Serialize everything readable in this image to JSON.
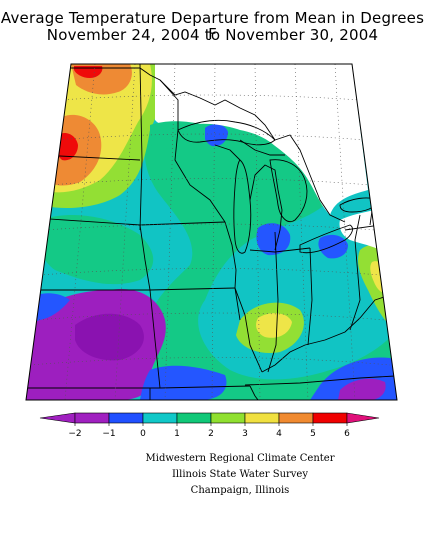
{
  "title": {
    "line1": "Average Temperature Departure from Mean in Degrees F",
    "line2": "November 24, 2004 to November 30, 2004"
  },
  "legend": {
    "ticks": [
      "−2",
      "−1",
      "0",
      "1",
      "2",
      "3",
      "4",
      "5",
      "6"
    ],
    "colors": [
      "#a020c0",
      "#2050ff",
      "#10c8c8",
      "#10c878",
      "#90e030",
      "#f0e040",
      "#f08a30",
      "#f00000",
      "#e0107a"
    ]
  },
  "credits": {
    "line1": "Midwestern Regional Climate Center",
    "line2": "Illinois State Water Survey",
    "line3": "Champaign, Illinois"
  },
  "map": {
    "region": "Midwest United States",
    "field_colors": {
      "purple": "#9d1fbf",
      "blue": "#2456ff",
      "cyan": "#11c4c4",
      "green": "#14c986",
      "lime": "#93df34",
      "yellow": "#eee548",
      "orange": "#ee8a34",
      "red": "#ef0a0a"
    }
  }
}
